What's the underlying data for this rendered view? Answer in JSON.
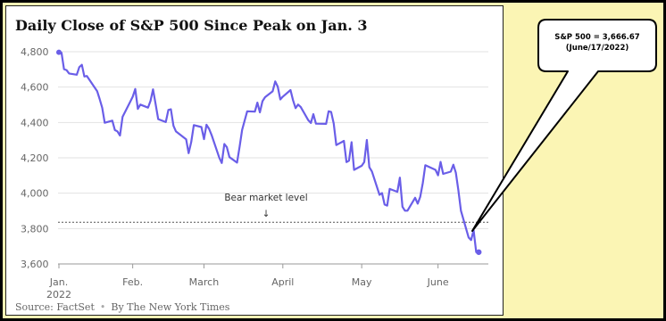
{
  "chart_data": {
    "type": "line",
    "title": "Daily Close of S&P 500 Since Peak on Jan. 3",
    "xlabel": "",
    "ylabel": "",
    "ylim": [
      3600,
      4800
    ],
    "xlim": [
      "2022-01-03",
      "2022-06-17"
    ],
    "y_ticks": [
      3600,
      3800,
      4000,
      4200,
      4400,
      4600,
      4800
    ],
    "y_tick_labels": [
      "3,600",
      "3,800",
      "4,000",
      "4,200",
      "4,400",
      "4,600",
      "4,800"
    ],
    "x_ticks": [
      {
        "date": "2022-01-03",
        "label": "Jan.",
        "sublabel": "2022"
      },
      {
        "date": "2022-02-01",
        "label": "Feb.",
        "sublabel": ""
      },
      {
        "date": "2022-03-01",
        "label": "March",
        "sublabel": ""
      },
      {
        "date": "2022-04-01",
        "label": "April",
        "sublabel": ""
      },
      {
        "date": "2022-05-02",
        "label": "May",
        "sublabel": ""
      },
      {
        "date": "2022-06-01",
        "label": "June",
        "sublabel": ""
      }
    ],
    "grid": true,
    "line_color": "#6a5ee8",
    "reference_line": {
      "y": 3836,
      "label": "Bear market level",
      "arrow": "↓"
    },
    "end_marker": {
      "date": "2022-06-17",
      "value": 3666.67
    },
    "series": [
      {
        "x": [
          "2022-01-03",
          "2022-01-04",
          "2022-01-05",
          "2022-01-06",
          "2022-01-07",
          "2022-01-10",
          "2022-01-11",
          "2022-01-12",
          "2022-01-13",
          "2022-01-14",
          "2022-01-18",
          "2022-01-19",
          "2022-01-20",
          "2022-01-21",
          "2022-01-24",
          "2022-01-25",
          "2022-01-26",
          "2022-01-27",
          "2022-01-28",
          "2022-01-31",
          "2022-02-01",
          "2022-02-02",
          "2022-02-03",
          "2022-02-04",
          "2022-02-07",
          "2022-02-08",
          "2022-02-09",
          "2022-02-10",
          "2022-02-11",
          "2022-02-14",
          "2022-02-15",
          "2022-02-16",
          "2022-02-17",
          "2022-02-18",
          "2022-02-22",
          "2022-02-23",
          "2022-02-24",
          "2022-02-25",
          "2022-02-28",
          "2022-03-01",
          "2022-03-02",
          "2022-03-03",
          "2022-03-04",
          "2022-03-07",
          "2022-03-08",
          "2022-03-09",
          "2022-03-10",
          "2022-03-11",
          "2022-03-14",
          "2022-03-15",
          "2022-03-16",
          "2022-03-17",
          "2022-03-18",
          "2022-03-21",
          "2022-03-22",
          "2022-03-23",
          "2022-03-24",
          "2022-03-25",
          "2022-03-28",
          "2022-03-29",
          "2022-03-30",
          "2022-03-31",
          "2022-04-01",
          "2022-04-04",
          "2022-04-05",
          "2022-04-06",
          "2022-04-07",
          "2022-04-08",
          "2022-04-11",
          "2022-04-12",
          "2022-04-13",
          "2022-04-14",
          "2022-04-18",
          "2022-04-19",
          "2022-04-20",
          "2022-04-21",
          "2022-04-22",
          "2022-04-25",
          "2022-04-26",
          "2022-04-27",
          "2022-04-28",
          "2022-04-29",
          "2022-05-02",
          "2022-05-03",
          "2022-05-04",
          "2022-05-05",
          "2022-05-06",
          "2022-05-09",
          "2022-05-10",
          "2022-05-11",
          "2022-05-12",
          "2022-05-13",
          "2022-05-16",
          "2022-05-17",
          "2022-05-18",
          "2022-05-19",
          "2022-05-20",
          "2022-05-23",
          "2022-05-24",
          "2022-05-25",
          "2022-05-26",
          "2022-05-27",
          "2022-05-31",
          "2022-06-01",
          "2022-06-02",
          "2022-06-03",
          "2022-06-06",
          "2022-06-07",
          "2022-06-08",
          "2022-06-09",
          "2022-06-10",
          "2022-06-13",
          "2022-06-14",
          "2022-06-15",
          "2022-06-16",
          "2022-06-17"
        ],
        "values": [
          4797,
          4794,
          4701,
          4696,
          4677,
          4670,
          4713,
          4726,
          4660,
          4663,
          4577,
          4533,
          4483,
          4398,
          4410,
          4357,
          4350,
          4326,
          4432,
          4516,
          4546,
          4589,
          4477,
          4501,
          4484,
          4522,
          4587,
          4504,
          4419,
          4402,
          4471,
          4475,
          4381,
          4349,
          4305,
          4226,
          4289,
          4385,
          4374,
          4306,
          4387,
          4364,
          4329,
          4201,
          4171,
          4278,
          4260,
          4204,
          4173,
          4263,
          4358,
          4412,
          4463,
          4461,
          4512,
          4457,
          4520,
          4543,
          4576,
          4632,
          4603,
          4530,
          4546,
          4583,
          4526,
          4481,
          4501,
          4488,
          4413,
          4397,
          4447,
          4393,
          4392,
          4463,
          4459,
          4394,
          4272,
          4296,
          4176,
          4184,
          4288,
          4132,
          4155,
          4176,
          4301,
          4147,
          4123,
          3991,
          4001,
          3936,
          3930,
          4024,
          4008,
          4088,
          3923,
          3901,
          3901,
          3974,
          3941,
          3979,
          4058,
          4158,
          4132,
          4101,
          4177,
          4109,
          4122,
          4161,
          4116,
          4018,
          3901,
          3750,
          3735,
          3790,
          3667,
          3667
        ]
      }
    ],
    "callout": {
      "line1": "S&P 500 = 3,666.67",
      "line2": "(June/17/2022)"
    },
    "source": {
      "left": "Source: FactSet",
      "sep": "•",
      "right": "By The New York Times"
    }
  }
}
